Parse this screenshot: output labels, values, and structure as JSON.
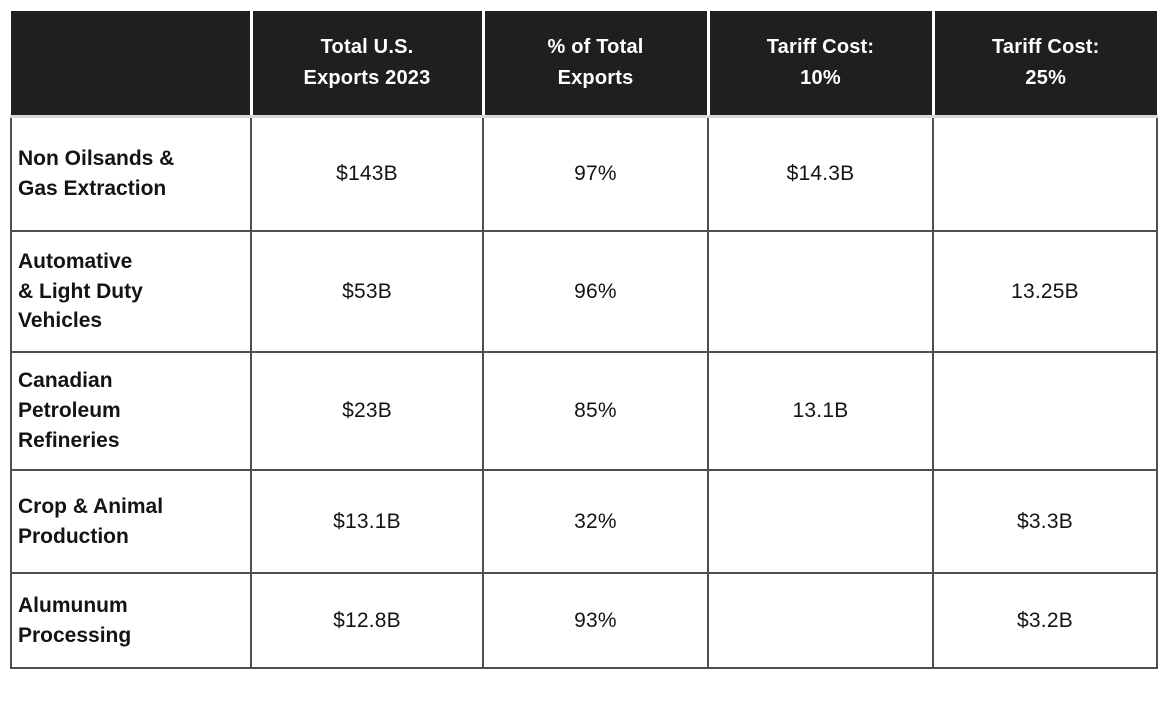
{
  "table": {
    "header": [
      {
        "label": ""
      },
      {
        "label": "Total U.S.\nExports 2023"
      },
      {
        "label": "% of Total\nExports"
      },
      {
        "label": "Tariff Cost:\n10%"
      },
      {
        "label": "Tariff Cost:\n25%"
      }
    ],
    "rows": [
      {
        "label": "Non Oilsands &\nGas Extraction",
        "cells": [
          "$143B",
          "97%",
          "$14.3B",
          ""
        ]
      },
      {
        "label": "Automative\n& Light Duty\nVehicles",
        "cells": [
          "$53B",
          "96%",
          "",
          "13.25B"
        ]
      },
      {
        "label": "Canadian\nPetroleum\nRefineries",
        "cells": [
          "$23B",
          "85%",
          "13.1B",
          ""
        ]
      },
      {
        "label": "Crop & Animal\nProduction",
        "cells": [
          "$13.1B",
          "32%",
          "",
          "$3.3B"
        ]
      },
      {
        "label": "Alumunum\nProcessing",
        "cells": [
          "$12.8B",
          "93%",
          "",
          "$3.2B"
        ]
      }
    ],
    "colors": {
      "header_bg": "#201e1e",
      "header_text": "#ffffff",
      "body_border": "#4e4e4e",
      "header_divider": "#ffffff",
      "header_underline": "#d8d8d8",
      "body_text": "#141414"
    }
  },
  "chart_data": {
    "type": "table",
    "columns": [
      "",
      "Total U.S. Exports 2023",
      "% of Total Exports",
      "Tariff Cost: 10%",
      "Tariff Cost: 25%"
    ],
    "rows": [
      [
        "Non Oilsands & Gas Extraction",
        "$143B",
        "97%",
        "$14.3B",
        ""
      ],
      [
        "Automative & Light Duty Vehicles",
        "$53B",
        "96%",
        "",
        "13.25B"
      ],
      [
        "Canadian Petroleum Refineries",
        "$23B",
        "85%",
        "13.1B",
        ""
      ],
      [
        "Crop & Animal Production",
        "$13.1B",
        "32%",
        "",
        "$3.3B"
      ],
      [
        "Alumunum Processing",
        "$12.8B",
        "93%",
        "",
        "$3.2B"
      ]
    ],
    "notes": {
      "values_total_exports": [
        143,
        53,
        23,
        13.1,
        12.8
      ],
      "values_pct_of_total": [
        97,
        96,
        85,
        32,
        93
      ],
      "values_tariff_10_billions": [
        14.3,
        null,
        13.1,
        null,
        null
      ],
      "values_tariff_25_billions": [
        null,
        13.25,
        null,
        3.3,
        3.2
      ],
      "units": "billions USD"
    }
  }
}
